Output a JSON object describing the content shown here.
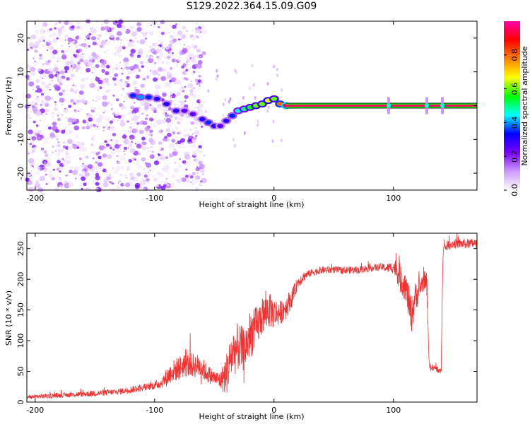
{
  "title": "S129.2022.364.15.09.G09",
  "chart_data": [
    {
      "type": "heatmap",
      "xlabel": "Height of straight line (km)",
      "ylabel": "Frequency (Hz)",
      "xlim": [
        -207,
        170
      ],
      "ylim": [
        -25,
        25
      ],
      "x_ticks": [
        -200,
        -100,
        0,
        100
      ],
      "y_ticks": [
        20,
        10,
        0,
        -10,
        -20
      ],
      "colorbar": {
        "label": "Normalized spectral amplitude",
        "ticks": [
          0.0,
          0.2,
          0.4,
          0.6,
          0.8
        ],
        "range": [
          0,
          1
        ],
        "colors": [
          "#ffffff",
          "#cc99ff",
          "#7a00ff",
          "#0000ff",
          "#00ffff",
          "#00ff00",
          "#ffff00",
          "#ff8000",
          "#ff0000",
          "#ff00aa"
        ]
      },
      "noise_region_x": [
        -207,
        -58
      ],
      "ridge": [
        {
          "x": -118,
          "y": 3.0,
          "v": 0.35
        },
        {
          "x": -112,
          "y": 2.5,
          "v": 0.4
        },
        {
          "x": -105,
          "y": 2.5,
          "v": 0.35
        },
        {
          "x": -98,
          "y": 2.0,
          "v": 0.3
        },
        {
          "x": -90,
          "y": 0.5,
          "v": 0.3
        },
        {
          "x": -82,
          "y": -1.5,
          "v": 0.3
        },
        {
          "x": -75,
          "y": -1.5,
          "v": 0.25
        },
        {
          "x": -68,
          "y": -2.5,
          "v": 0.25
        },
        {
          "x": -60,
          "y": -4.0,
          "v": 0.3
        },
        {
          "x": -55,
          "y": -5.0,
          "v": 0.35
        },
        {
          "x": -50,
          "y": -6.0,
          "v": 0.3
        },
        {
          "x": -45,
          "y": -6.0,
          "v": 0.25
        },
        {
          "x": -40,
          "y": -4.5,
          "v": 0.3
        },
        {
          "x": -35,
          "y": -3.0,
          "v": 0.35
        },
        {
          "x": -30,
          "y": -1.5,
          "v": 0.45
        },
        {
          "x": -25,
          "y": -1.0,
          "v": 0.5
        },
        {
          "x": -20,
          "y": -0.5,
          "v": 0.55
        },
        {
          "x": -15,
          "y": 0.0,
          "v": 0.6
        },
        {
          "x": -10,
          "y": 0.5,
          "v": 0.6
        },
        {
          "x": -5,
          "y": 1.5,
          "v": 0.65
        },
        {
          "x": 0,
          "y": 2.0,
          "v": 0.6
        },
        {
          "x": 5,
          "y": 0.5,
          "v": 0.8
        },
        {
          "x": 10,
          "y": 0.0,
          "v": 0.95
        }
      ],
      "carrier_line": {
        "x_start": 10,
        "x_end": 170,
        "y": 0.0,
        "v": 0.95
      },
      "carrier_spurs": [
        96,
        128,
        141
      ]
    },
    {
      "type": "line",
      "xlabel": "Height of straight line (km)",
      "ylabel": "SNR (10 * v/v)",
      "xlim": [
        -207,
        170
      ],
      "ylim": [
        0,
        275
      ],
      "x_ticks": [
        -200,
        -100,
        0,
        100
      ],
      "y_ticks": [
        0,
        50,
        100,
        150,
        200,
        250
      ],
      "line_color": "#ee3333",
      "series": [
        {
          "x": [
            -207,
            -190,
            -170,
            -150,
            -130,
            -115,
            -105,
            -95,
            -90,
            -85,
            -80,
            -75,
            -70,
            -65,
            -60,
            -55,
            -50,
            -45,
            -40,
            -35,
            -30,
            -25,
            -20,
            -15,
            -10,
            -5,
            0,
            5,
            10,
            15,
            20,
            25,
            30,
            40,
            50,
            60,
            70,
            80,
            90,
            95,
            100,
            103,
            106,
            110,
            115,
            118,
            122,
            126,
            128,
            130,
            132,
            135,
            138,
            140,
            141,
            142,
            145,
            150,
            160,
            170
          ],
          "y": [
            8,
            10,
            12,
            14,
            17,
            22,
            25,
            30,
            40,
            50,
            55,
            60,
            60,
            60,
            55,
            45,
            40,
            35,
            45,
            80,
            90,
            85,
            110,
            120,
            140,
            150,
            145,
            145,
            155,
            170,
            195,
            205,
            210,
            215,
            215,
            215,
            215,
            218,
            220,
            218,
            220,
            215,
            200,
            190,
            140,
            170,
            185,
            200,
            190,
            60,
            55,
            55,
            52,
            48,
            200,
            250,
            255,
            258,
            258,
            258
          ],
          "noise": [
            3,
            4,
            4,
            5,
            5,
            6,
            6,
            8,
            15,
            18,
            20,
            20,
            20,
            20,
            18,
            15,
            12,
            15,
            35,
            40,
            40,
            35,
            40,
            35,
            30,
            30,
            25,
            20,
            20,
            15,
            10,
            8,
            6,
            6,
            6,
            6,
            6,
            6,
            6,
            8,
            10,
            20,
            25,
            25,
            30,
            25,
            20,
            15,
            20,
            6,
            6,
            6,
            6,
            6,
            20,
            8,
            8,
            8,
            8,
            8
          ]
        }
      ]
    }
  ]
}
